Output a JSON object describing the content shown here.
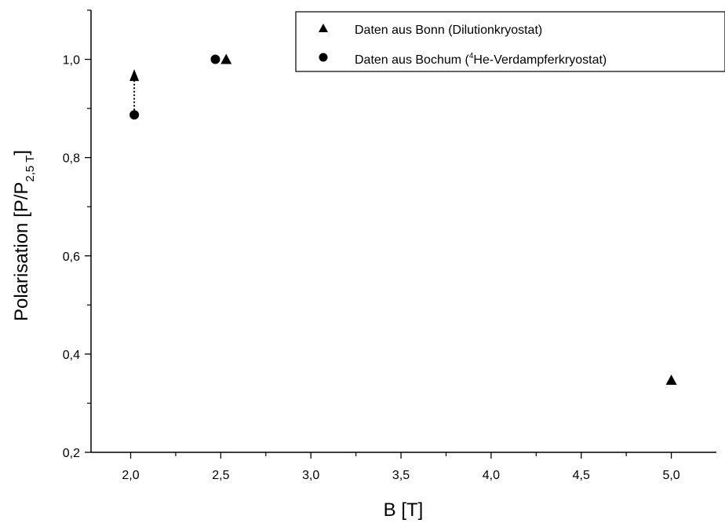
{
  "chart_data": {
    "type": "scatter",
    "xlabel": "B [T]",
    "ylabel": {
      "main": "Polarisation [P/P",
      "sub": "2,5 T",
      "end": "]"
    },
    "xlim": [
      1.78,
      5.25
    ],
    "ylim": [
      0.2,
      1.1
    ],
    "x_ticks": [
      2.0,
      2.5,
      3.0,
      3.5,
      4.0,
      4.5,
      5.0
    ],
    "x_tick_labels": [
      "2,0",
      "2,5",
      "3,0",
      "3,5",
      "4,0",
      "4,5",
      "5,0"
    ],
    "y_ticks": [
      0.2,
      0.4,
      0.6,
      0.8,
      1.0
    ],
    "y_tick_labels": [
      "0,2",
      "0,4",
      "0,6",
      "0,8",
      "1,0"
    ],
    "grid": false,
    "legend_position": "top-right",
    "series": [
      {
        "name": "Daten aus Bonn (Dilutionkryostat)",
        "marker": "triangle",
        "color": "#000000",
        "points": [
          {
            "x": 2.53,
            "y": 1.0
          },
          {
            "x": 5.0,
            "y": 0.347
          }
        ]
      },
      {
        "name": "Daten aus Bochum (4He-Verdampferkryostat)",
        "marker": "circle",
        "color": "#000000",
        "points": [
          {
            "x": 2.02,
            "y": 0.887
          },
          {
            "x": 2.47,
            "y": 1.0
          }
        ]
      }
    ],
    "legend": [
      {
        "marker": "triangle",
        "text": "Daten aus Bonn (Dilutionkryostat)"
      },
      {
        "marker": "circle",
        "pre": "Daten aus Bochum (",
        "sup": "4",
        "post": "He-Verdampferkryostat)"
      }
    ],
    "annotations": [
      {
        "type": "dotted-arrow",
        "x": 2.02,
        "from_y": 0.887,
        "to_y": 0.98
      }
    ]
  }
}
